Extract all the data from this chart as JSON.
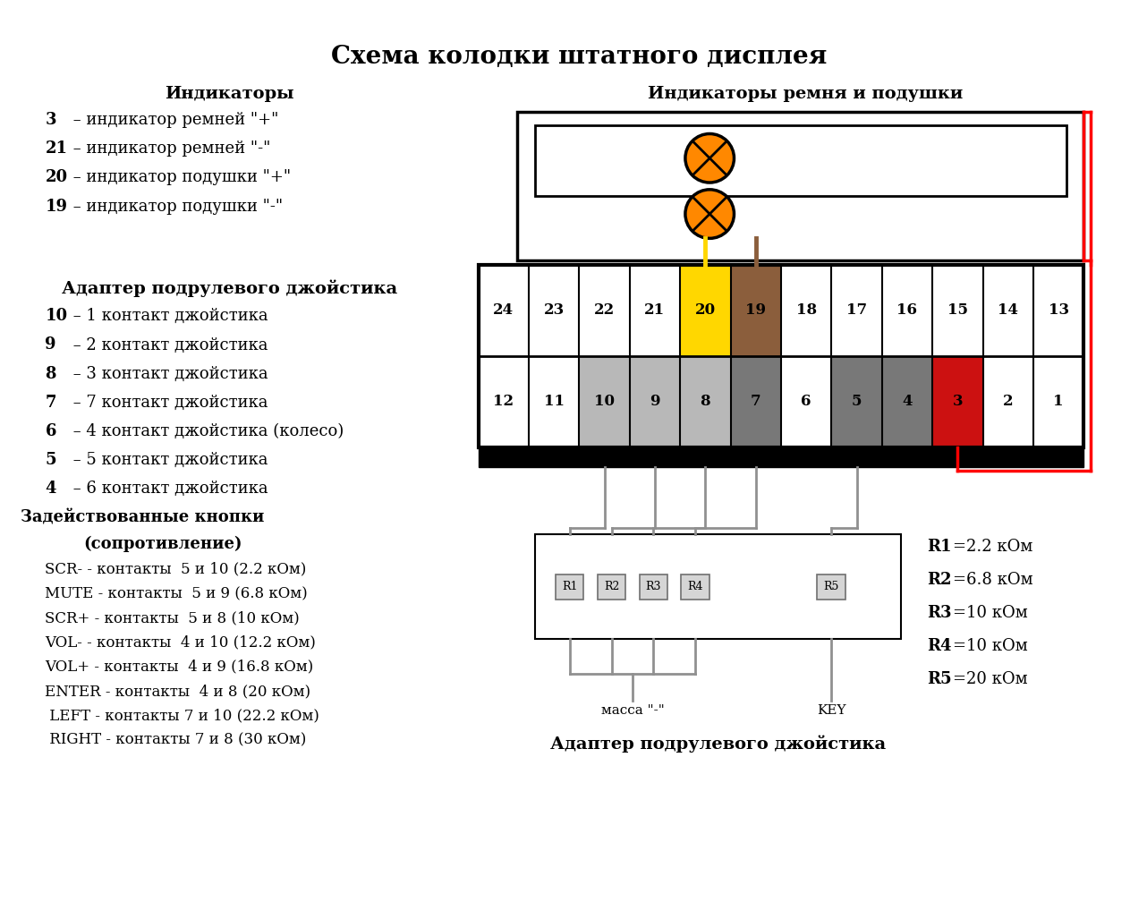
{
  "title": "Схема колодки штатного дисплея",
  "bg_color": "#ffffff",
  "indicators_header": "Индикаторы",
  "indicators": [
    {
      "num": "3",
      "text": " – индикатор ремней \"+\""
    },
    {
      "num": "21",
      "text": " – индикатор ремней \"-\""
    },
    {
      "num": "20",
      "text": " – индикатор подушки \"+\""
    },
    {
      "num": "19",
      "text": " – индикатор подушки \"-\""
    }
  ],
  "adapter_header": "Адаптер подрулевого джойстика",
  "adapter_pins": [
    {
      "num": "10",
      "text": " – 1 контакт джойстика"
    },
    {
      "num": "9",
      "text": " – 2 контакт джойстика"
    },
    {
      "num": "8",
      "text": " – 3 контакт джойстика"
    },
    {
      "num": "7",
      "text": " – 7 контакт джойстика"
    },
    {
      "num": "6",
      "text": " – 4 контакт джойстика (колесо)"
    },
    {
      "num": "5",
      "text": " – 5 контакт джойстика"
    },
    {
      "num": "4",
      "text": " – 6 контакт джойстика"
    }
  ],
  "buttons_header1": "Задействованные кнопки",
  "buttons_header2": "(сопротивление)",
  "buttons": [
    "SCR- - контакты  5 и 10 (2.2 кОм)",
    "MUTE - контакты  5 и 9 (6.8 кОм)",
    "SCR+ - контакты  5 и 8 (10 кОм)",
    "VOL- - контакты  4 и 10 (12.2 кОм)",
    "VOL+ - контакты  4 и 9 (16.8 кОм)",
    "ENTER - контакты  4 и 8 (20 кОм)",
    " LEFT - контакты 7 и 10 (22.2 кОм)",
    " RIGHT - контакты 7 и 8 (30 кОм)"
  ],
  "ind_label": "Индикаторы ремня и подушки",
  "adapter_bottom_label": "Адаптер подрулевого джойстика",
  "top_row": [
    24,
    23,
    22,
    21,
    20,
    19,
    18,
    17,
    16,
    15,
    14,
    13
  ],
  "bot_row": [
    12,
    11,
    10,
    9,
    8,
    7,
    6,
    5,
    4,
    3,
    2,
    1
  ],
  "top_colors": {
    "20": "#FFD700",
    "19": "#8B5E3C"
  },
  "bot_colors": {
    "10": "#B8B8B8",
    "9": "#B8B8B8",
    "8": "#B8B8B8",
    "7": "#787878",
    "5": "#787878",
    "4": "#787878",
    "3": "#CC1111"
  },
  "resistors": [
    "R1",
    "R2",
    "R3",
    "R4",
    "R5"
  ],
  "resistor_labels": [
    [
      "R1",
      "=2.2 кОм"
    ],
    [
      "R2",
      "=6.8 кОм"
    ],
    [
      "R3",
      "=10 кОм"
    ],
    [
      "R4",
      "=10 кОм"
    ],
    [
      "R5",
      "=20 кОм"
    ]
  ],
  "massa_label": "масса \"-\"",
  "key_label": "KEY",
  "lamp1_color": "#FF8800",
  "lamp2_color": "#FF8800"
}
